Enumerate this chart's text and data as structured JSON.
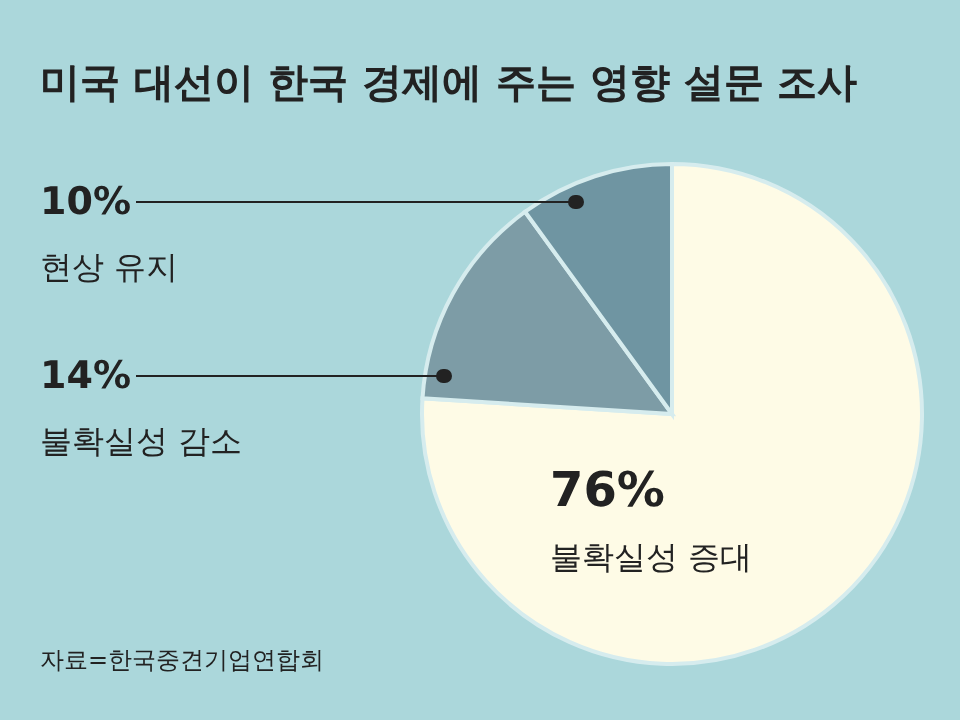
{
  "chart_data": {
    "type": "pie",
    "title": "미국 대선이 한국 경제에 주는 영향 설문 조사",
    "categories": [
      "불확실성 증대",
      "불확실성 감소",
      "현상 유지"
    ],
    "values": [
      76,
      14,
      10
    ],
    "colors": [
      "#fefbe6",
      "#7d9ca6",
      "#6f95a2"
    ],
    "value_labels": [
      "76%",
      "14%",
      "10%"
    ],
    "annotations": [
      "자료=한국중견기업연합회"
    ]
  }
}
